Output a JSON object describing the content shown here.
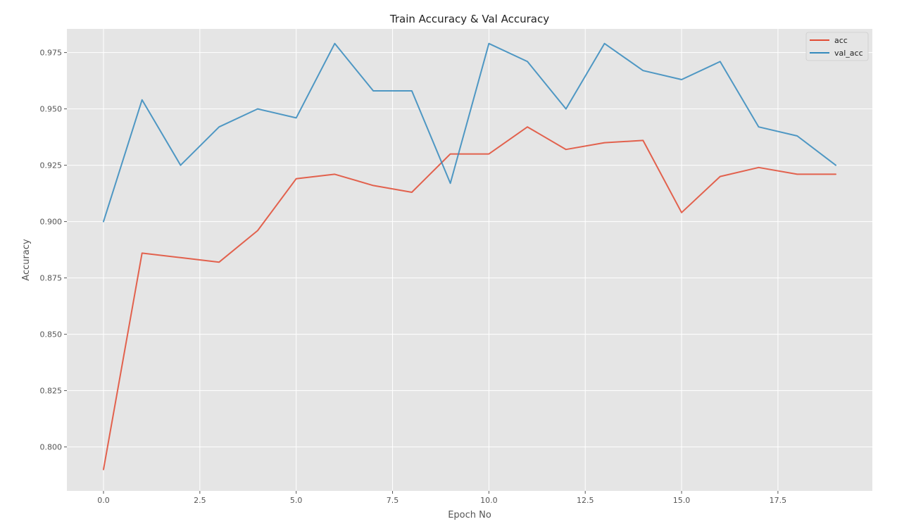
{
  "chart_data": {
    "type": "line",
    "title": "Train Accuracy & Val Accuracy",
    "xlabel": "Epoch No",
    "ylabel": "Accuracy",
    "x": [
      0,
      1,
      2,
      3,
      4,
      5,
      6,
      7,
      8,
      9,
      10,
      11,
      12,
      13,
      14,
      15,
      16,
      17,
      18,
      19
    ],
    "series": [
      {
        "name": "acc",
        "color": "#E24A33",
        "values": [
          0.79,
          0.886,
          0.884,
          0.882,
          0.896,
          0.919,
          0.921,
          0.916,
          0.913,
          0.93,
          0.93,
          0.942,
          0.932,
          0.935,
          0.936,
          0.904,
          0.92,
          0.924,
          0.921,
          0.921
        ]
      },
      {
        "name": "val_acc",
        "color": "#348ABD",
        "values": [
          0.9,
          0.954,
          0.925,
          0.942,
          0.95,
          0.946,
          0.979,
          0.958,
          0.958,
          0.917,
          0.979,
          0.971,
          0.95,
          0.979,
          0.967,
          0.963,
          0.971,
          0.942,
          0.938,
          0.925
        ]
      }
    ],
    "xlim": [
      -0.95,
      19.95
    ],
    "ylim": [
      0.7805,
      0.9855
    ],
    "xticks": [
      0.0,
      2.5,
      5.0,
      7.5,
      10.0,
      12.5,
      15.0,
      17.5
    ],
    "xtick_labels": [
      "0.0",
      "2.5",
      "5.0",
      "7.5",
      "10.0",
      "12.5",
      "15.0",
      "17.5"
    ],
    "yticks": [
      0.8,
      0.825,
      0.85,
      0.875,
      0.9,
      0.925,
      0.95,
      0.975
    ],
    "ytick_labels": [
      "0.800",
      "0.825",
      "0.850",
      "0.875",
      "0.900",
      "0.925",
      "0.950",
      "0.975"
    ],
    "grid": true,
    "legend": "top-right",
    "background_color": "#E5E5E5",
    "grid_color": "#FFFFFF"
  }
}
